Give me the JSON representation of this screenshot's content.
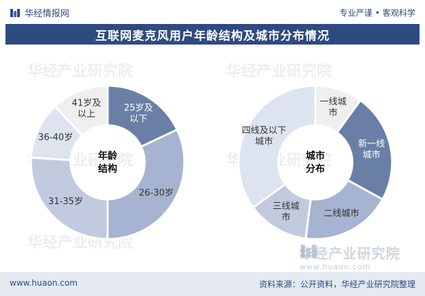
{
  "header": {
    "brand": "华经情报网",
    "tagline": "专业严谨 • 客观科学",
    "title": "互联网麦克风用户年龄结构及城市分布情况"
  },
  "watermark": {
    "text": "华经产业研究院",
    "url": "www.huaon.com"
  },
  "footer": {
    "url": "www.huaon.com",
    "source": "资料来源：公开资料，华经产业研究院整理"
  },
  "chart_data": [
    {
      "type": "pie",
      "variant": "donut",
      "center_label": [
        "年龄",
        "结构"
      ],
      "categories": [
        "25岁及以下",
        "26-30岁",
        "31-35岁",
        "36-40岁",
        "41岁及以上"
      ],
      "label_lines": [
        [
          "25岁及",
          "以下"
        ],
        [
          "26-30岁"
        ],
        [
          "31-35岁"
        ],
        [
          "36-40岁"
        ],
        [
          "41岁及",
          "以上"
        ]
      ],
      "values": [
        18,
        32,
        26,
        12,
        12
      ],
      "colors": [
        "#6a7fa5",
        "#a6b3d1",
        "#c2cadf",
        "#dde3ef",
        "#efefef"
      ],
      "label_colors": [
        "#ffffff",
        "#333333",
        "#333333",
        "#333333",
        "#333333"
      ]
    },
    {
      "type": "pie",
      "variant": "donut",
      "center_label": [
        "城市",
        "分布"
      ],
      "categories": [
        "一线城市",
        "新一线城市",
        "二线城市",
        "三线城市",
        "四线及以下城市"
      ],
      "label_lines": [
        [
          "一线城",
          "市"
        ],
        [
          "新一线",
          "城市"
        ],
        [
          "二线城市"
        ],
        [
          "三线城",
          "市"
        ],
        [
          "四线及以下",
          "城市"
        ]
      ],
      "values": [
        10,
        23,
        19,
        13,
        35
      ],
      "colors": [
        "#efefef",
        "#6a7fa5",
        "#a6b3d1",
        "#c2cadf",
        "#dde3ef"
      ],
      "label_colors": [
        "#333333",
        "#ffffff",
        "#333333",
        "#333333",
        "#333333"
      ]
    }
  ]
}
